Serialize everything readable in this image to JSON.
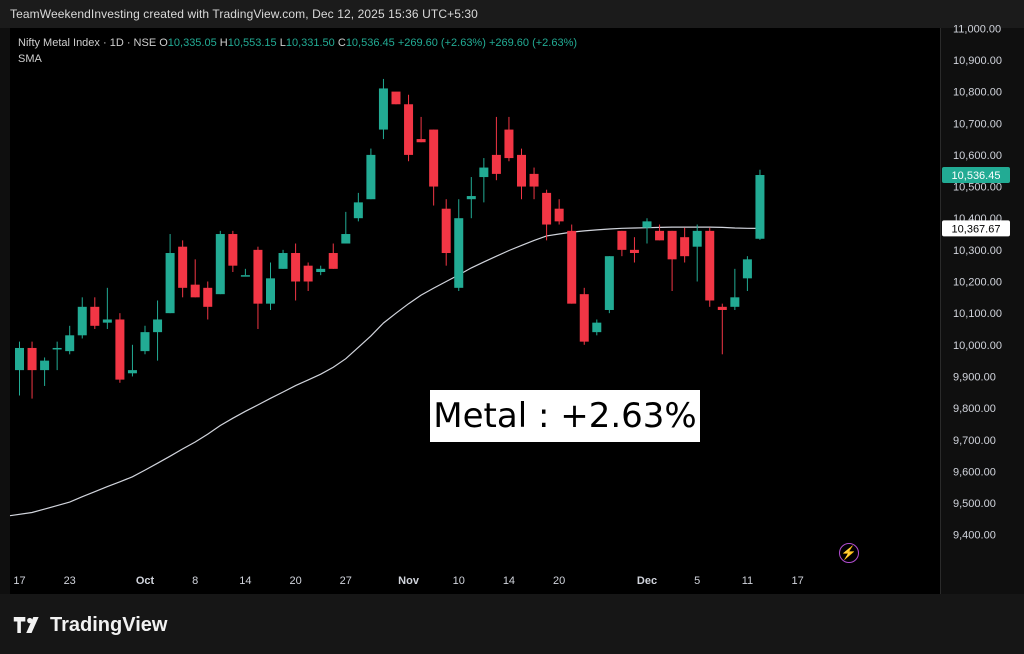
{
  "header": {
    "credit": "TeamWeekendInvesting created with TradingView.com, Dec 12, 2025 15:36 UTC+5:30"
  },
  "legend": {
    "symbol": "Nifty Metal Index · 1D · NSE",
    "o_key": "O",
    "o_val": "10,335.05",
    "h_key": "H",
    "h_val": "10,553.15",
    "l_key": "L",
    "l_val": "10,331.50",
    "c_key": "C",
    "c_val": "10,536.45",
    "change1": "+269.60 (+2.63%)",
    "change2": "+269.60 (+2.63%)",
    "indicator": "SMA"
  },
  "annotation": {
    "text": "Metal : +2.63%"
  },
  "brand": {
    "name": "TradingView"
  },
  "icons": {
    "alert": "lightning-icon"
  },
  "colors": {
    "up": "#22ab94",
    "down": "#f23645",
    "sma": "#d1d4dc",
    "background": "#000000",
    "last_price_badge": "#22ab94",
    "sma_badge": "#ffffff"
  },
  "chart_data": {
    "type": "candlestick",
    "ylim": [
      9300,
      11100
    ],
    "y_ticks": [
      9400,
      9500,
      9600,
      9700,
      9800,
      9900,
      10000,
      10100,
      10200,
      10300,
      10400,
      10500,
      10600,
      10700,
      10800,
      10900,
      11000
    ],
    "y_tick_labels": [
      "9,400.00",
      "9,500.00",
      "9,600.00",
      "9,700.00",
      "9,800.00",
      "9,900.00",
      "10,000.00",
      "10,100.00",
      "10,200.00",
      "10,300.00",
      "10,400.00",
      "10,500.00",
      "10,600.00",
      "10,700.00",
      "10,800.00",
      "10,900.00",
      "11,000.00"
    ],
    "x_ticks": [
      {
        "label": "17",
        "bold": false,
        "index": 0
      },
      {
        "label": "23",
        "bold": false,
        "index": 4
      },
      {
        "label": "Oct",
        "bold": true,
        "index": 10
      },
      {
        "label": "8",
        "bold": false,
        "index": 14
      },
      {
        "label": "14",
        "bold": false,
        "index": 18
      },
      {
        "label": "20",
        "bold": false,
        "index": 22
      },
      {
        "label": "27",
        "bold": false,
        "index": 26
      },
      {
        "label": "Nov",
        "bold": true,
        "index": 31
      },
      {
        "label": "10",
        "bold": false,
        "index": 35
      },
      {
        "label": "14",
        "bold": false,
        "index": 39
      },
      {
        "label": "20",
        "bold": false,
        "index": 43
      },
      {
        "label": "Dec",
        "bold": true,
        "index": 50
      },
      {
        "label": "5",
        "bold": false,
        "index": 54
      },
      {
        "label": "11",
        "bold": false,
        "index": 58
      },
      {
        "label": "17",
        "bold": false,
        "index": 62
      }
    ],
    "last_price_label": "10,536.45",
    "sma_label": "10,367.67",
    "sma_value": 10367.67,
    "candles": [
      {
        "o": 9920,
        "h": 10010,
        "l": 9840,
        "c": 9990
      },
      {
        "o": 9990,
        "h": 10010,
        "l": 9830,
        "c": 9920
      },
      {
        "o": 9920,
        "h": 9960,
        "l": 9870,
        "c": 9950
      },
      {
        "o": 9990,
        "h": 10010,
        "l": 9920,
        "c": 9990
      },
      {
        "o": 9980,
        "h": 10060,
        "l": 9970,
        "c": 10030
      },
      {
        "o": 10030,
        "h": 10150,
        "l": 10020,
        "c": 10120
      },
      {
        "o": 10120,
        "h": 10150,
        "l": 10050,
        "c": 10060
      },
      {
        "o": 10070,
        "h": 10180,
        "l": 10050,
        "c": 10080
      },
      {
        "o": 10080,
        "h": 10100,
        "l": 9880,
        "c": 9890
      },
      {
        "o": 9910,
        "h": 10000,
        "l": 9900,
        "c": 9920
      },
      {
        "o": 9980,
        "h": 10060,
        "l": 9970,
        "c": 10040
      },
      {
        "o": 10040,
        "h": 10140,
        "l": 9950,
        "c": 10080
      },
      {
        "o": 10100,
        "h": 10350,
        "l": 10100,
        "c": 10290
      },
      {
        "o": 10310,
        "h": 10330,
        "l": 10150,
        "c": 10180
      },
      {
        "o": 10190,
        "h": 10270,
        "l": 10150,
        "c": 10150
      },
      {
        "o": 10180,
        "h": 10200,
        "l": 10080,
        "c": 10120
      },
      {
        "o": 10160,
        "h": 10360,
        "l": 10160,
        "c": 10350
      },
      {
        "o": 10350,
        "h": 10360,
        "l": 10230,
        "c": 10250
      },
      {
        "o": 10220,
        "h": 10240,
        "l": 10220,
        "c": 10220
      },
      {
        "o": 10300,
        "h": 10310,
        "l": 10050,
        "c": 10130
      },
      {
        "o": 10130,
        "h": 10260,
        "l": 10110,
        "c": 10210
      },
      {
        "o": 10240,
        "h": 10300,
        "l": 10240,
        "c": 10290
      },
      {
        "o": 10290,
        "h": 10320,
        "l": 10140,
        "c": 10200
      },
      {
        "o": 10250,
        "h": 10260,
        "l": 10170,
        "c": 10200
      },
      {
        "o": 10230,
        "h": 10250,
        "l": 10220,
        "c": 10240
      },
      {
        "o": 10290,
        "h": 10320,
        "l": 10240,
        "c": 10240
      },
      {
        "o": 10320,
        "h": 10420,
        "l": 10320,
        "c": 10350
      },
      {
        "o": 10400,
        "h": 10480,
        "l": 10390,
        "c": 10450
      },
      {
        "o": 10460,
        "h": 10620,
        "l": 10460,
        "c": 10600
      },
      {
        "o": 10680,
        "h": 10840,
        "l": 10650,
        "c": 10810
      },
      {
        "o": 10800,
        "h": 10790,
        "l": 10760,
        "c": 10760
      },
      {
        "o": 10760,
        "h": 10790,
        "l": 10580,
        "c": 10600
      },
      {
        "o": 10650,
        "h": 10720,
        "l": 10640,
        "c": 10640
      },
      {
        "o": 10680,
        "h": 10680,
        "l": 10440,
        "c": 10500
      },
      {
        "o": 10430,
        "h": 10460,
        "l": 10250,
        "c": 10290
      },
      {
        "o": 10180,
        "h": 10460,
        "l": 10170,
        "c": 10400
      },
      {
        "o": 10460,
        "h": 10530,
        "l": 10400,
        "c": 10470
      },
      {
        "o": 10530,
        "h": 10590,
        "l": 10450,
        "c": 10560
      },
      {
        "o": 10600,
        "h": 10720,
        "l": 10520,
        "c": 10540
      },
      {
        "o": 10680,
        "h": 10720,
        "l": 10580,
        "c": 10590
      },
      {
        "o": 10600,
        "h": 10620,
        "l": 10460,
        "c": 10500
      },
      {
        "o": 10540,
        "h": 10560,
        "l": 10460,
        "c": 10500
      },
      {
        "o": 10480,
        "h": 10490,
        "l": 10330,
        "c": 10380
      },
      {
        "o": 10430,
        "h": 10460,
        "l": 10380,
        "c": 10390
      },
      {
        "o": 10360,
        "h": 10380,
        "l": 10130,
        "c": 10130
      },
      {
        "o": 10160,
        "h": 10180,
        "l": 10000,
        "c": 10010
      },
      {
        "o": 10040,
        "h": 10080,
        "l": 10030,
        "c": 10070
      },
      {
        "o": 10110,
        "h": 10280,
        "l": 10100,
        "c": 10280
      },
      {
        "o": 10360,
        "h": 10360,
        "l": 10280,
        "c": 10300
      },
      {
        "o": 10300,
        "h": 10340,
        "l": 10260,
        "c": 10290
      },
      {
        "o": 10370,
        "h": 10400,
        "l": 10320,
        "c": 10390
      },
      {
        "o": 10360,
        "h": 10380,
        "l": 10330,
        "c": 10330
      },
      {
        "o": 10360,
        "h": 10360,
        "l": 10170,
        "c": 10270
      },
      {
        "o": 10340,
        "h": 10370,
        "l": 10260,
        "c": 10280
      },
      {
        "o": 10310,
        "h": 10380,
        "l": 10200,
        "c": 10360
      },
      {
        "o": 10360,
        "h": 10370,
        "l": 10120,
        "c": 10140
      },
      {
        "o": 10120,
        "h": 10130,
        "l": 9970,
        "c": 10110
      },
      {
        "o": 10120,
        "h": 10240,
        "l": 10110,
        "c": 10150
      },
      {
        "o": 10210,
        "h": 10280,
        "l": 10170,
        "c": 10270
      },
      {
        "o": 10335.05,
        "h": 10553.15,
        "l": 10331.5,
        "c": 10536.45
      }
    ],
    "sma": [
      9460,
      9470,
      9481,
      9492,
      9503,
      9520,
      9536,
      9552,
      9567,
      9583,
      9604,
      9626,
      9648,
      9671,
      9693,
      9718,
      9745,
      9768,
      9790,
      9810,
      9831,
      9851,
      9871,
      9889,
      9907,
      9929,
      9956,
      9992,
      10028,
      10069,
      10100,
      10130,
      10157,
      10179,
      10200,
      10221,
      10243,
      10262,
      10280,
      10298,
      10314,
      10330,
      10344,
      10350,
      10356,
      10360,
      10363,
      10366,
      10368,
      10369,
      10370,
      10371,
      10372,
      10372,
      10372,
      10372,
      10371,
      10369,
      10368,
      10367.67
    ]
  }
}
